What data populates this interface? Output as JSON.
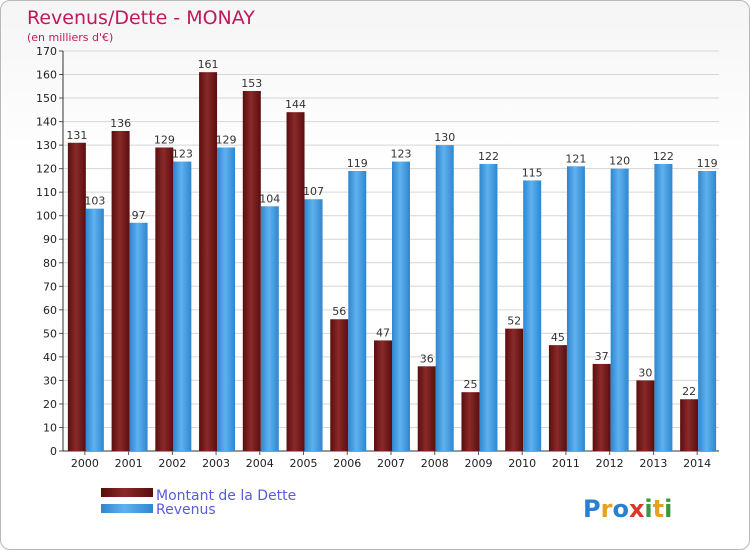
{
  "chart_data": {
    "type": "bar",
    "title": "Revenus/Dette - MONAY",
    "subtitle": "(en milliers d'€)",
    "categories": [
      "2000",
      "2001",
      "2002",
      "2003",
      "2004",
      "2005",
      "2006",
      "2007",
      "2008",
      "2009",
      "2010",
      "2011",
      "2012",
      "2013",
      "2014"
    ],
    "series": [
      {
        "name": "Montant de la Dette",
        "color": "#7a1a1a",
        "values": [
          131,
          136,
          129,
          161,
          153,
          144,
          56,
          47,
          36,
          25,
          52,
          45,
          37,
          30,
          22
        ]
      },
      {
        "name": "Revenus",
        "color": "#3a9be0",
        "values": [
          103,
          97,
          123,
          129,
          104,
          107,
          119,
          123,
          130,
          122,
          115,
          121,
          120,
          122,
          119
        ]
      }
    ],
    "ylim": [
      0,
      170
    ],
    "yticks": [
      0,
      10,
      20,
      30,
      40,
      50,
      60,
      70,
      80,
      90,
      100,
      110,
      120,
      130,
      140,
      150,
      160,
      170
    ],
    "grid": true,
    "legend_position": "bottom-left"
  },
  "logo": {
    "text": "Proxiti"
  }
}
